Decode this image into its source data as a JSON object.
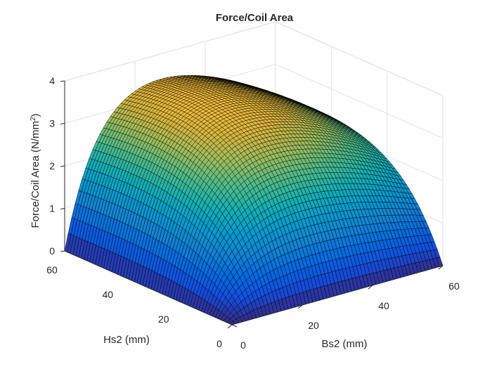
{
  "chart_data": {
    "type": "surface",
    "title": "Force/Coil Area",
    "xlabel": "Bs2 (mm)",
    "ylabel": "Hs2 (mm)",
    "zlabel": "Force/Coil Area (N/mm",
    "zlabel_sup": "2",
    "zlabel_close": ")",
    "xlim": [
      0,
      60
    ],
    "ylim": [
      0,
      60
    ],
    "zlim": [
      0,
      4
    ],
    "xticks": [
      "0",
      "20",
      "40",
      "60"
    ],
    "yticks": [
      "0",
      "20",
      "40",
      "60"
    ],
    "zticks": [
      "0",
      "1",
      "2",
      "3",
      "4"
    ],
    "grid": true,
    "colormap": "parula",
    "mesh_edge_color": "#000000",
    "grid_resolution": 60,
    "surface_model": "force per coil area rising from 0 at Bs2=0 and Hs2=0 to a broad peak of about 4 N/mm^2 near Bs2 20-40 mm, Hs2 40-60 mm",
    "surface_samples": [
      {
        "Bs2": 0,
        "Hs2": 0,
        "z": 0.0
      },
      {
        "Bs2": 0,
        "Hs2": 60,
        "z": 0.05
      },
      {
        "Bs2": 60,
        "Hs2": 0,
        "z": 0.02
      },
      {
        "Bs2": 60,
        "Hs2": 60,
        "z": 2.5
      },
      {
        "Bs2": 30,
        "Hs2": 50,
        "z": 4.0
      },
      {
        "Bs2": 10,
        "Hs2": 50,
        "z": 3.0
      },
      {
        "Bs2": 50,
        "Hs2": 50,
        "z": 3.4
      },
      {
        "Bs2": 30,
        "Hs2": 20,
        "z": 2.2
      },
      {
        "Bs2": 30,
        "Hs2": 5,
        "z": 0.7
      }
    ]
  }
}
